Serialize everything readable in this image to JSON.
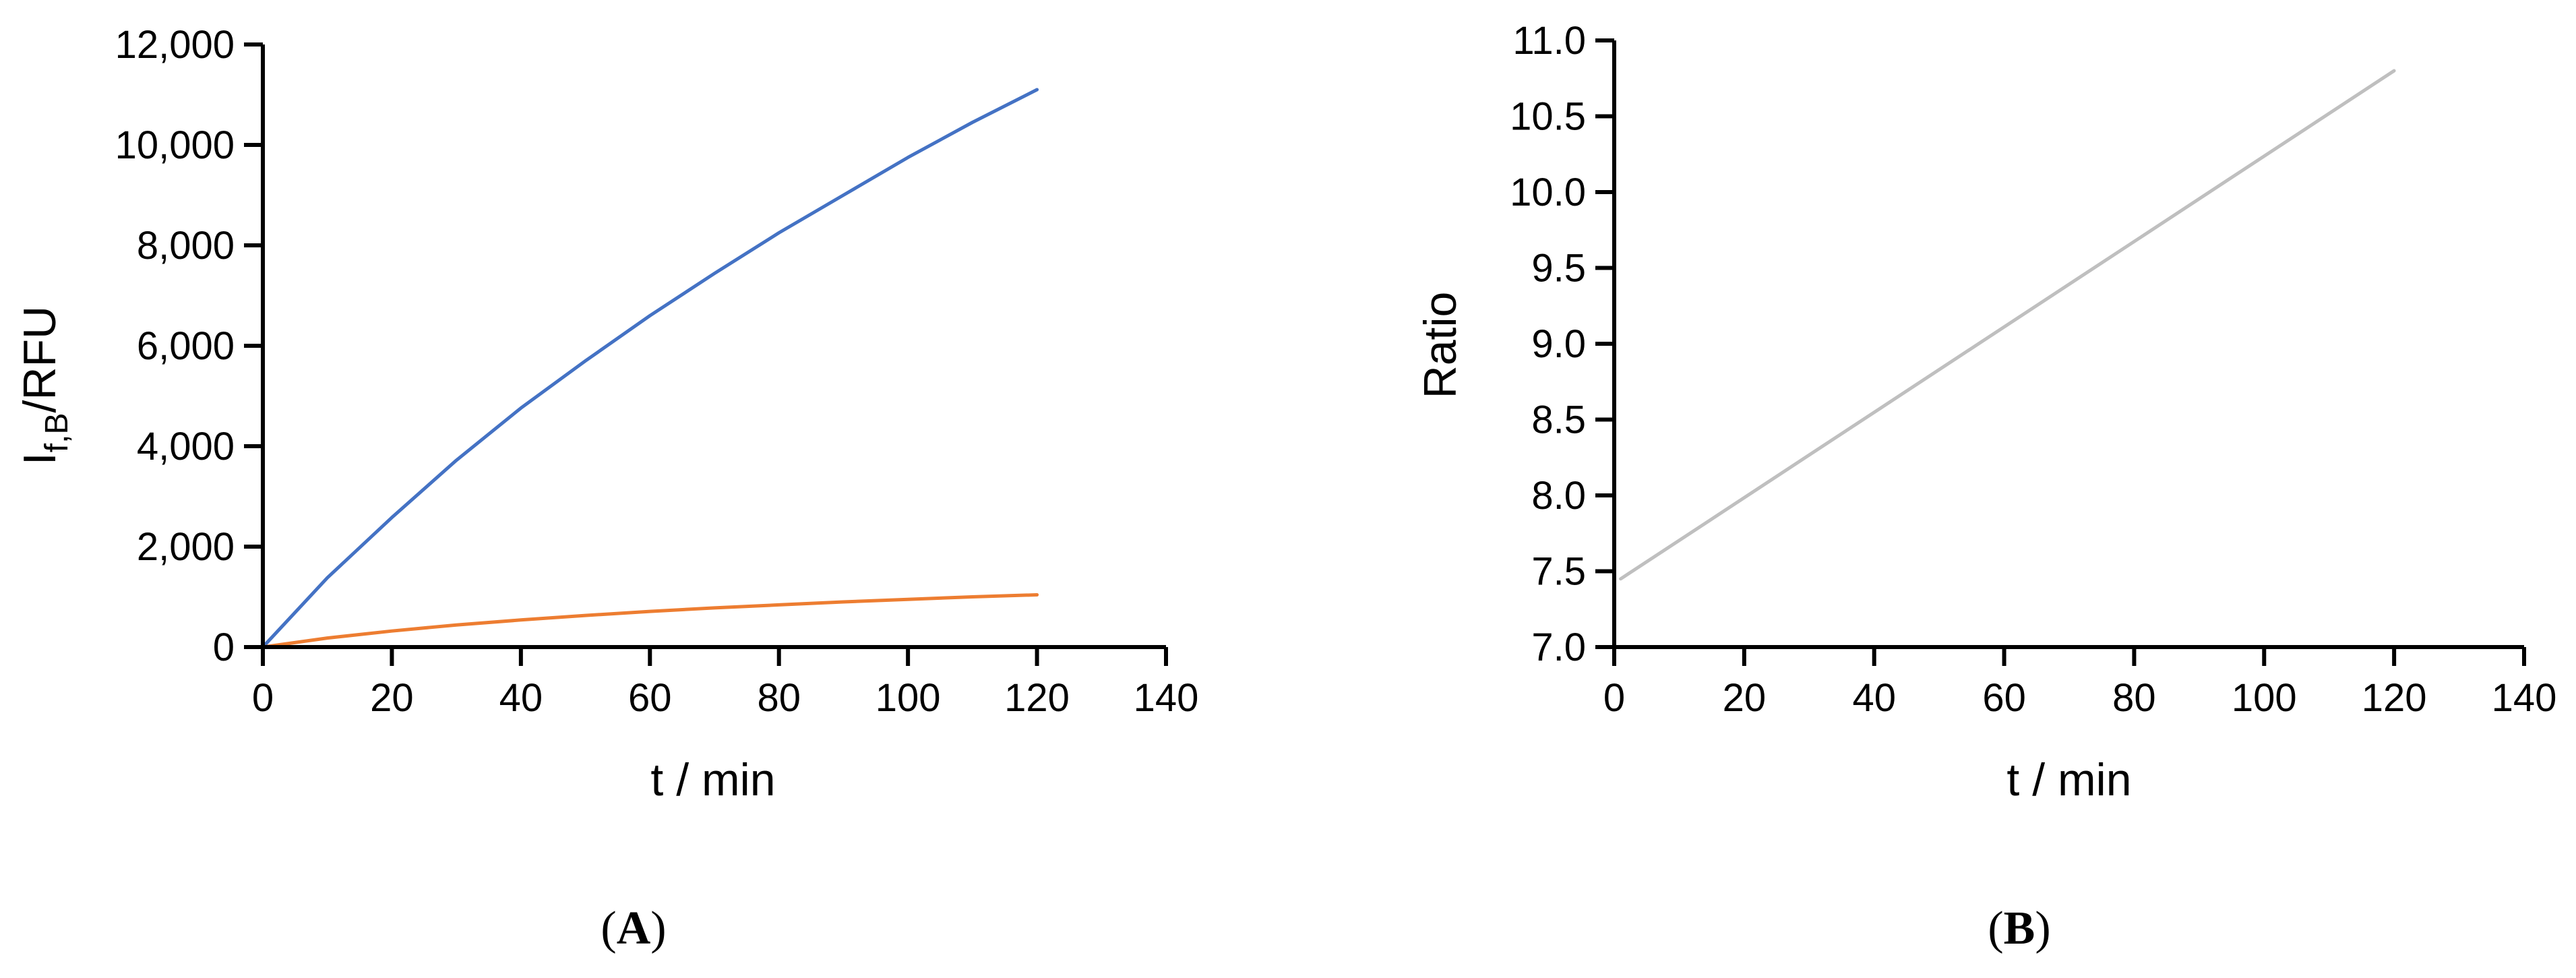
{
  "chart_data": [
    {
      "panel": "A",
      "type": "line",
      "xlabel": "t / min",
      "ylabel": {
        "main": "I",
        "sub": "f,B",
        "rest": "/RFU"
      },
      "xlim": [
        0,
        140
      ],
      "ylim": [
        0,
        12000
      ],
      "xticks": [
        0,
        20,
        40,
        60,
        80,
        100,
        120,
        140
      ],
      "yticks": [
        0,
        2000,
        4000,
        6000,
        8000,
        10000,
        12000
      ],
      "xtick_labels": [
        "0",
        "20",
        "40",
        "60",
        "80",
        "100",
        "120",
        "140"
      ],
      "ytick_labels": [
        "0",
        "2,000",
        "4,000",
        "6,000",
        "8,000",
        "10,000",
        "12,000"
      ],
      "grid": false,
      "series": [
        {
          "color": "#4472C4",
          "x": [
            0,
            10,
            20,
            30,
            40,
            50,
            60,
            70,
            80,
            90,
            100,
            110,
            120
          ],
          "y": [
            0,
            1380,
            2580,
            3720,
            4760,
            5700,
            6600,
            7440,
            8250,
            9000,
            9750,
            10450,
            11100
          ]
        },
        {
          "color": "#ED7D31",
          "x": [
            0,
            10,
            20,
            30,
            40,
            50,
            60,
            70,
            80,
            90,
            100,
            110,
            120
          ],
          "y": [
            0,
            180,
            320,
            440,
            540,
            630,
            710,
            780,
            840,
            900,
            950,
            1000,
            1040
          ]
        }
      ]
    },
    {
      "panel": "B",
      "type": "line",
      "xlabel": "t / min",
      "ylabel": "Ratio",
      "xlim": [
        0,
        140
      ],
      "ylim": [
        7.0,
        11.0
      ],
      "xticks": [
        0,
        20,
        40,
        60,
        80,
        100,
        120,
        140
      ],
      "yticks": [
        7.0,
        7.5,
        8.0,
        8.5,
        9.0,
        9.5,
        10.0,
        10.5,
        11.0
      ],
      "xtick_labels": [
        "0",
        "20",
        "40",
        "60",
        "80",
        "100",
        "120",
        "140"
      ],
      "ytick_labels": [
        "7.0",
        "7.5",
        "8.0",
        "8.5",
        "9.0",
        "9.5",
        "10.0",
        "10.5",
        "11.0"
      ],
      "grid": false,
      "series": [
        {
          "color": "#BFBFBF",
          "x": [
            1,
            120
          ],
          "y": [
            7.45,
            10.8
          ]
        }
      ]
    }
  ],
  "panel_labels": {
    "A": {
      "open": "(",
      "letter": "A",
      "close": ")"
    },
    "B": {
      "open": "(",
      "letter": "B",
      "close": ")"
    }
  }
}
